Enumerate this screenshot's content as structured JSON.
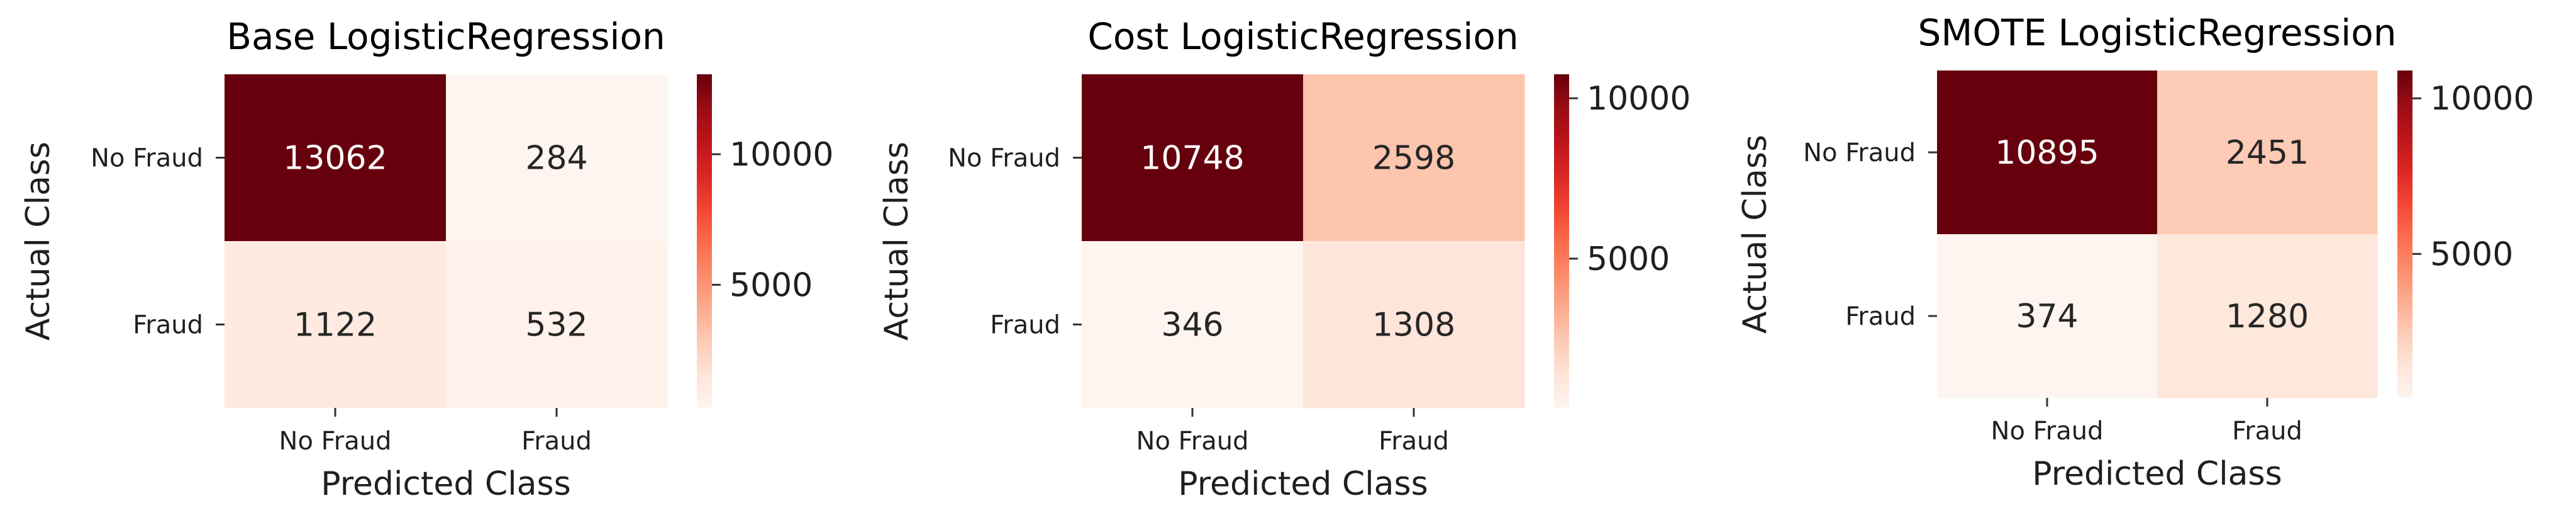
{
  "chart_data": [
    {
      "type": "heatmap",
      "title": "Base LogisticRegression",
      "xlabel": "Predicted Class",
      "ylabel": "Actual Class",
      "x_categories": [
        "No Fraud",
        "Fraud"
      ],
      "y_categories": [
        "No Fraud",
        "Fraud"
      ],
      "values": [
        [
          13062,
          284
        ],
        [
          1122,
          532
        ]
      ],
      "colormap": "Reds",
      "colorbar": {
        "ticks": [
          5000,
          10000
        ],
        "tick_labels": [
          "5000",
          "10000"
        ],
        "range": [
          284,
          13062
        ]
      }
    },
    {
      "type": "heatmap",
      "title": "Cost LogisticRegression",
      "xlabel": "Predicted Class",
      "ylabel": "Actual Class",
      "x_categories": [
        "No Fraud",
        "Fraud"
      ],
      "y_categories": [
        "No Fraud",
        "Fraud"
      ],
      "values": [
        [
          10748,
          2598
        ],
        [
          346,
          1308
        ]
      ],
      "colormap": "Reds",
      "colorbar": {
        "ticks": [
          5000,
          10000
        ],
        "tick_labels": [
          "5000",
          "10000"
        ],
        "range": [
          346,
          10748
        ]
      }
    },
    {
      "type": "heatmap",
      "title": "SMOTE LogisticRegression",
      "xlabel": "Predicted Class",
      "ylabel": "Actual Class",
      "x_categories": [
        "No Fraud",
        "Fraud"
      ],
      "y_categories": [
        "No Fraud",
        "Fraud"
      ],
      "values": [
        [
          10895,
          2451
        ],
        [
          374,
          1280
        ]
      ],
      "colormap": "Reds",
      "colorbar": {
        "ticks": [
          5000,
          10000
        ],
        "tick_labels": [
          "5000",
          "10000"
        ],
        "range": [
          374,
          10895
        ]
      }
    }
  ]
}
